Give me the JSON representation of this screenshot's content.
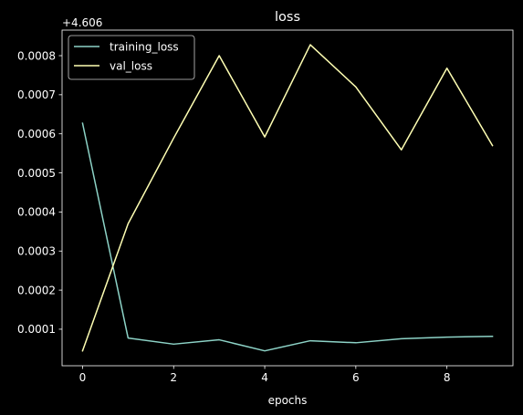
{
  "chart_data": {
    "type": "line",
    "title": "loss",
    "xlabel": "epochs",
    "ylabel": "",
    "y_offset_label": "+4.606",
    "y_offset": 4.606,
    "x": [
      0,
      1,
      2,
      3,
      4,
      5,
      6,
      7,
      8,
      9
    ],
    "xlim": [
      -0.45,
      9.45
    ],
    "ylim": [
      6.5e-06,
      0.0008654
    ],
    "x_ticks": [
      0,
      2,
      4,
      6,
      8
    ],
    "y_ticks": [
      0.0001,
      0.0002,
      0.0003,
      0.0004,
      0.0005,
      0.0006,
      0.0007,
      0.0008
    ],
    "y_tick_labels": [
      "0.0001",
      "0.0002",
      "0.0003",
      "0.0004",
      "0.0005",
      "0.0006",
      "0.0007",
      "0.0008"
    ],
    "grid": false,
    "legend": "top-left",
    "series": [
      {
        "name": "training_loss",
        "color": "#8dd3c7",
        "values": [
          0.000627,
          7.75e-05,
          6.18e-05,
          7.29e-05,
          4.46e-05,
          7.05e-05,
          6.53e-05,
          7.56e-05,
          7.97e-05,
          8.18e-05
        ]
      },
      {
        "name": "val_loss",
        "color": "#ffffb3",
        "values": [
          4.46e-05,
          0.00037,
          0.000589,
          0.0008,
          0.000592,
          0.000828,
          0.00072,
          0.000559,
          0.000768,
          0.00057
        ]
      }
    ],
    "colors": {
      "background": "#000000",
      "foreground": "#ffffff"
    }
  }
}
